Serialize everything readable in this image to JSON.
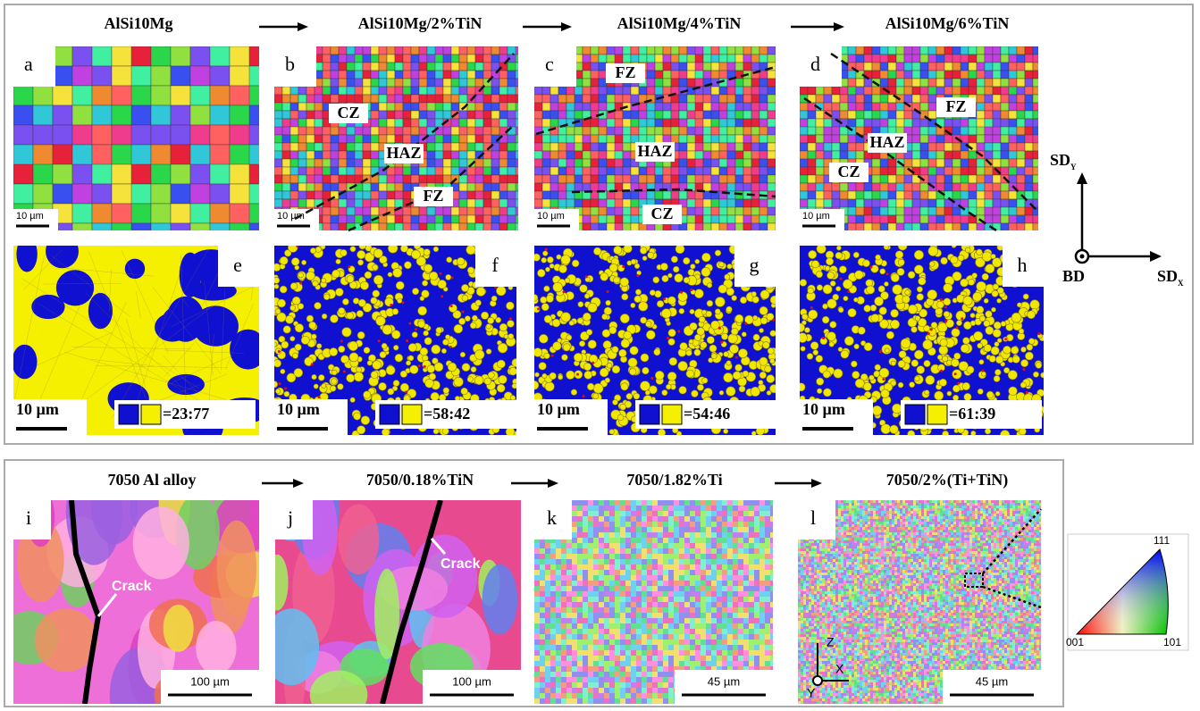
{
  "top_panel": {
    "titles": [
      "AlSi10Mg",
      "AlSi10Mg/2%TiN",
      "AlSi10Mg/4%TiN",
      "AlSi10Mg/6%TiN"
    ],
    "ipf_maps": [
      {
        "label": "a",
        "scale_bar": "10 µm"
      },
      {
        "label": "b",
        "scale_bar": "10 µm",
        "zones": [
          "CZ",
          "HAZ",
          "FZ"
        ]
      },
      {
        "label": "c",
        "scale_bar": "10 µm",
        "zones": [
          "FZ",
          "HAZ",
          "CZ"
        ]
      },
      {
        "label": "d",
        "scale_bar": "10 µm",
        "zones": [
          "FZ",
          "HAZ",
          "CZ"
        ]
      }
    ],
    "phase_maps": [
      {
        "label": "e",
        "scale_bar": "10 µm",
        "ratio": "=23:77"
      },
      {
        "label": "f",
        "scale_bar": "10 µm",
        "ratio": "=58:42"
      },
      {
        "label": "g",
        "scale_bar": "10 µm",
        "ratio": "=54:46"
      },
      {
        "label": "h",
        "scale_bar": "10 µm",
        "ratio": "=61:39"
      }
    ],
    "axes": {
      "y_base": "SD",
      "y_sub": "Y",
      "x_base": "SD",
      "x_sub": "X",
      "z": "BD"
    }
  },
  "bottom_panel": {
    "titles": [
      "7050 Al alloy",
      "7050/0.18%TiN",
      "7050/1.82%Ti",
      "7050/2%(Ti+TiN)"
    ],
    "maps": [
      {
        "label": "i",
        "scale_bar": "100 µm",
        "annotation": "Crack"
      },
      {
        "label": "j",
        "scale_bar": "100 µm",
        "annotation": "Crack"
      },
      {
        "label": "k",
        "scale_bar": "45 µm"
      },
      {
        "label": "l",
        "scale_bar": "45 µm"
      }
    ],
    "coordinate_axes": [
      "Z",
      "X",
      "Y"
    ],
    "ipf_legend": [
      "111",
      "001",
      "101"
    ]
  }
}
